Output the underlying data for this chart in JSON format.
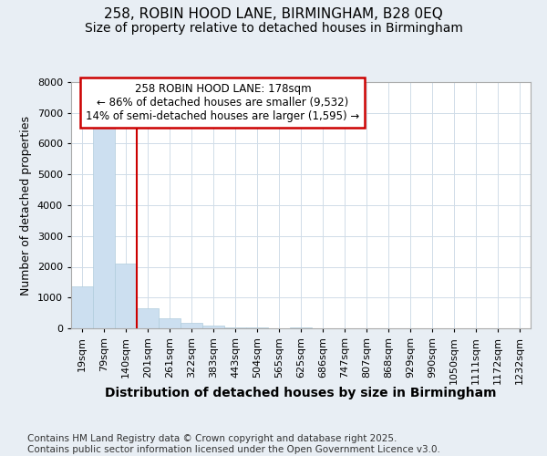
{
  "title_line1": "258, ROBIN HOOD LANE, BIRMINGHAM, B28 0EQ",
  "title_line2": "Size of property relative to detached houses in Birmingham",
  "xlabel": "Distribution of detached houses by size in Birmingham",
  "ylabel": "Number of detached properties",
  "categories": [
    "19sqm",
    "79sqm",
    "140sqm",
    "201sqm",
    "261sqm",
    "322sqm",
    "383sqm",
    "443sqm",
    "504sqm",
    "565sqm",
    "625sqm",
    "686sqm",
    "747sqm",
    "807sqm",
    "868sqm",
    "929sqm",
    "990sqm",
    "1050sqm",
    "1111sqm",
    "1172sqm",
    "1232sqm"
  ],
  "values": [
    1350,
    6650,
    2100,
    650,
    320,
    175,
    75,
    30,
    15,
    5,
    30,
    2,
    1,
    1,
    0,
    0,
    0,
    0,
    0,
    0,
    0
  ],
  "bar_color": "#ccdff0",
  "bar_edge_color": "#b0ccdd",
  "vline_color": "#cc0000",
  "annotation_text": "258 ROBIN HOOD LANE: 178sqm\n← 86% of detached houses are smaller (9,532)\n14% of semi-detached houses are larger (1,595) →",
  "annotation_box_color": "#cc0000",
  "ylim": [
    0,
    8000
  ],
  "yticks": [
    0,
    1000,
    2000,
    3000,
    4000,
    5000,
    6000,
    7000,
    8000
  ],
  "footnote": "Contains HM Land Registry data © Crown copyright and database right 2025.\nContains public sector information licensed under the Open Government Licence v3.0.",
  "background_color": "#e8eef4",
  "plot_bg_color": "#ffffff",
  "grid_color": "#d0dce8",
  "title_fontsize": 11,
  "subtitle_fontsize": 10,
  "xlabel_fontsize": 10,
  "ylabel_fontsize": 9,
  "tick_fontsize": 8,
  "annotation_fontsize": 8.5,
  "footnote_fontsize": 7.5
}
